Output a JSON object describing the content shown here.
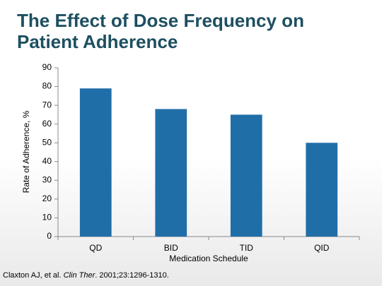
{
  "chart_data": {
    "type": "bar",
    "title": "The Effect of Dose Frequency on Patient Adherence",
    "y_label": "Rate of Adherence, %",
    "x_label": "Medication Schedule",
    "categories": [
      "QD",
      "BID",
      "TID",
      "QID"
    ],
    "values": [
      79,
      68,
      65,
      50
    ],
    "color": "#1f6ea8",
    "ylim": [
      0,
      90
    ],
    "yticks": [
      0,
      10,
      20,
      30,
      40,
      50,
      60,
      70,
      80,
      90
    ],
    "grid": false
  },
  "citation": [
    "Claxton AJ, et al. ",
    "Clin Ther",
    ". 2001;23:1296-1310."
  ]
}
